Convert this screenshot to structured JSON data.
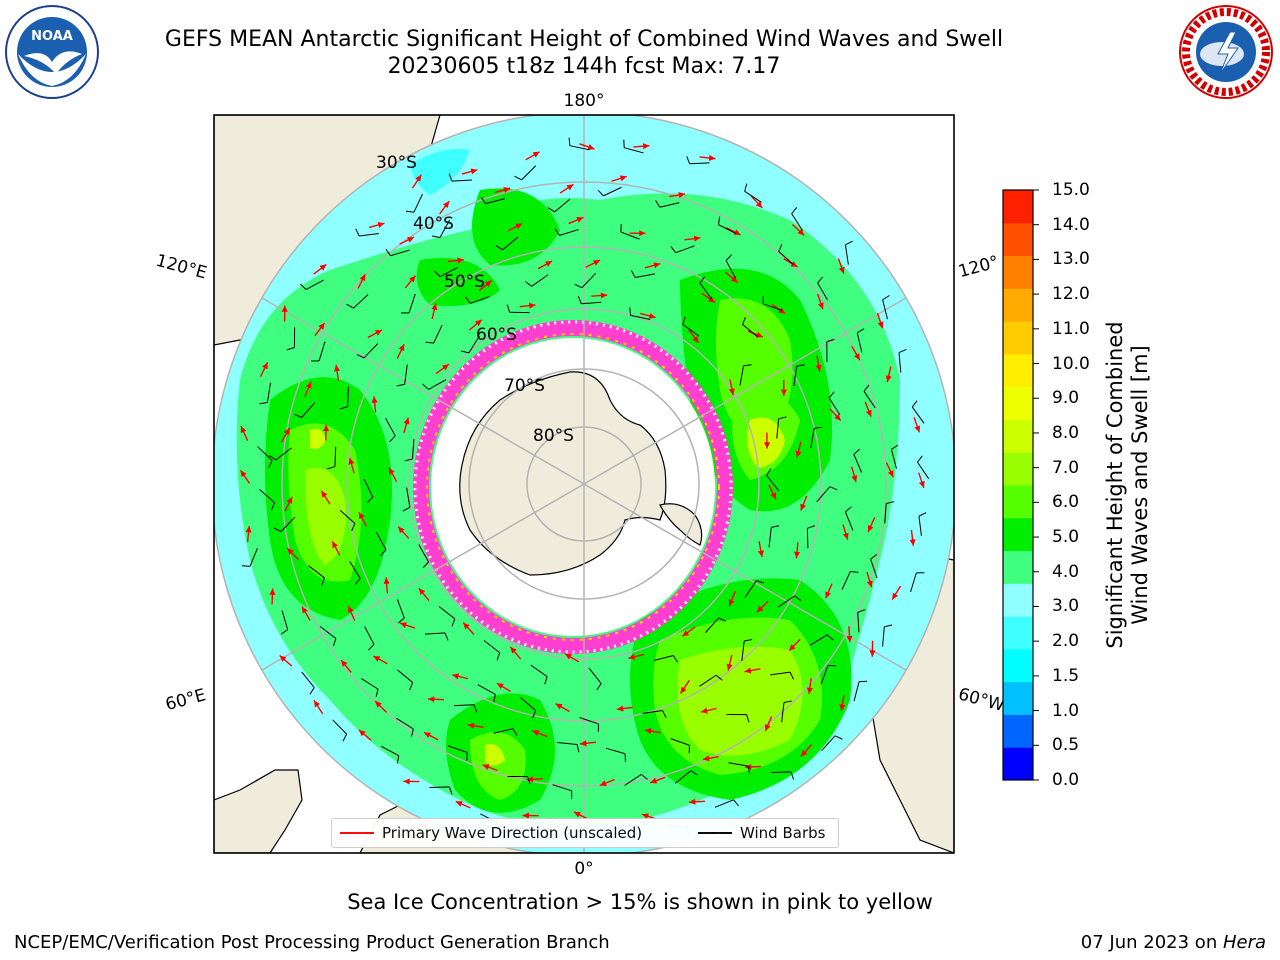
{
  "title": {
    "line1": "GEFS MEAN Antarctic Significant Height of Combined Wind Waves and Swell",
    "line2": "20230605 t18z 144h fcst   Max: 7.17"
  },
  "logos": [
    {
      "name": "noaa-logo",
      "text": "NOAA"
    },
    {
      "name": "nws-logo",
      "text": "NATIONAL WEATHER SERVICE"
    }
  ],
  "map": {
    "projection": "south polar stereographic",
    "longitude_labels": [
      "180°",
      "120°E",
      "120°",
      "60°E",
      "60°W",
      "0°"
    ],
    "latitude_labels": [
      "30°S",
      "40°S",
      "50°S",
      "60°S",
      "70°S",
      "80°S"
    ],
    "colors": {
      "land": "#efecdc",
      "coast": "#000000",
      "grid": "#b3b3b3",
      "ice": "#ff3fd0",
      "wave_direction": "#ff0000",
      "wind_barb": "#000000"
    }
  },
  "legend": {
    "wave_label": "Primary Wave Direction (unscaled)",
    "barb_label": "Wind Barbs"
  },
  "colorbar": {
    "label_line1": "Significant Height of Combined",
    "label_line2": "Wind Waves and Swell [m]",
    "ticks": [
      "0.0",
      "0.5",
      "1.0",
      "1.5",
      "2.0",
      "3.0",
      "4.0",
      "5.0",
      "6.0",
      "7.0",
      "8.0",
      "9.0",
      "10.0",
      "11.0",
      "12.0",
      "13.0",
      "14.0",
      "15.0"
    ],
    "colors": [
      "#0000ff",
      "#0066ff",
      "#00c0ff",
      "#00ffff",
      "#40ffff",
      "#90ffff",
      "#40ff80",
      "#00ee00",
      "#55ff00",
      "#99ff00",
      "#ccff00",
      "#eeff00",
      "#ffee00",
      "#ffcc00",
      "#ffaa00",
      "#ff8000",
      "#ff5000",
      "#ff2000"
    ]
  },
  "caption": "Sea Ice Concentration > 15% is shown in pink to yellow",
  "footer": {
    "credit": "NCEP/EMC/Verification Post Processing Product Generation Branch",
    "date_prefix": "07 Jun 2023 on ",
    "date_host": "Hera"
  }
}
